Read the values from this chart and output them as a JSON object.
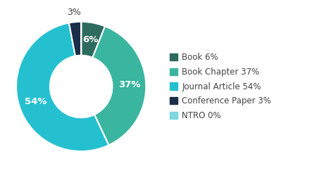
{
  "labels": [
    "Book",
    "Book Chapter",
    "Journal Article",
    "Conference Paper",
    "NTRO"
  ],
  "values": [
    6,
    37,
    54,
    3,
    0
  ],
  "colors": [
    "#2d6b5e",
    "#3ab5a0",
    "#25c0d0",
    "#1a2e4a",
    "#7dd6e0"
  ],
  "legend_labels": [
    "Book 6%",
    "Book Chapter 37%",
    "Journal Article 54%",
    "Conference Paper 3%",
    "NTRO 0%"
  ],
  "pct_labels": [
    "6%",
    "37%",
    "54%",
    "3%",
    ""
  ],
  "pct_inside": [
    true,
    true,
    true,
    false,
    false
  ],
  "donut_width": 0.52,
  "figsize": [
    4.43,
    2.46
  ],
  "dpi": 100,
  "background_color": "#ffffff",
  "legend_fontsize": 8.5,
  "pct_fontsize": 9.5,
  "outside_pct_fontsize": 9,
  "startangle": 90
}
